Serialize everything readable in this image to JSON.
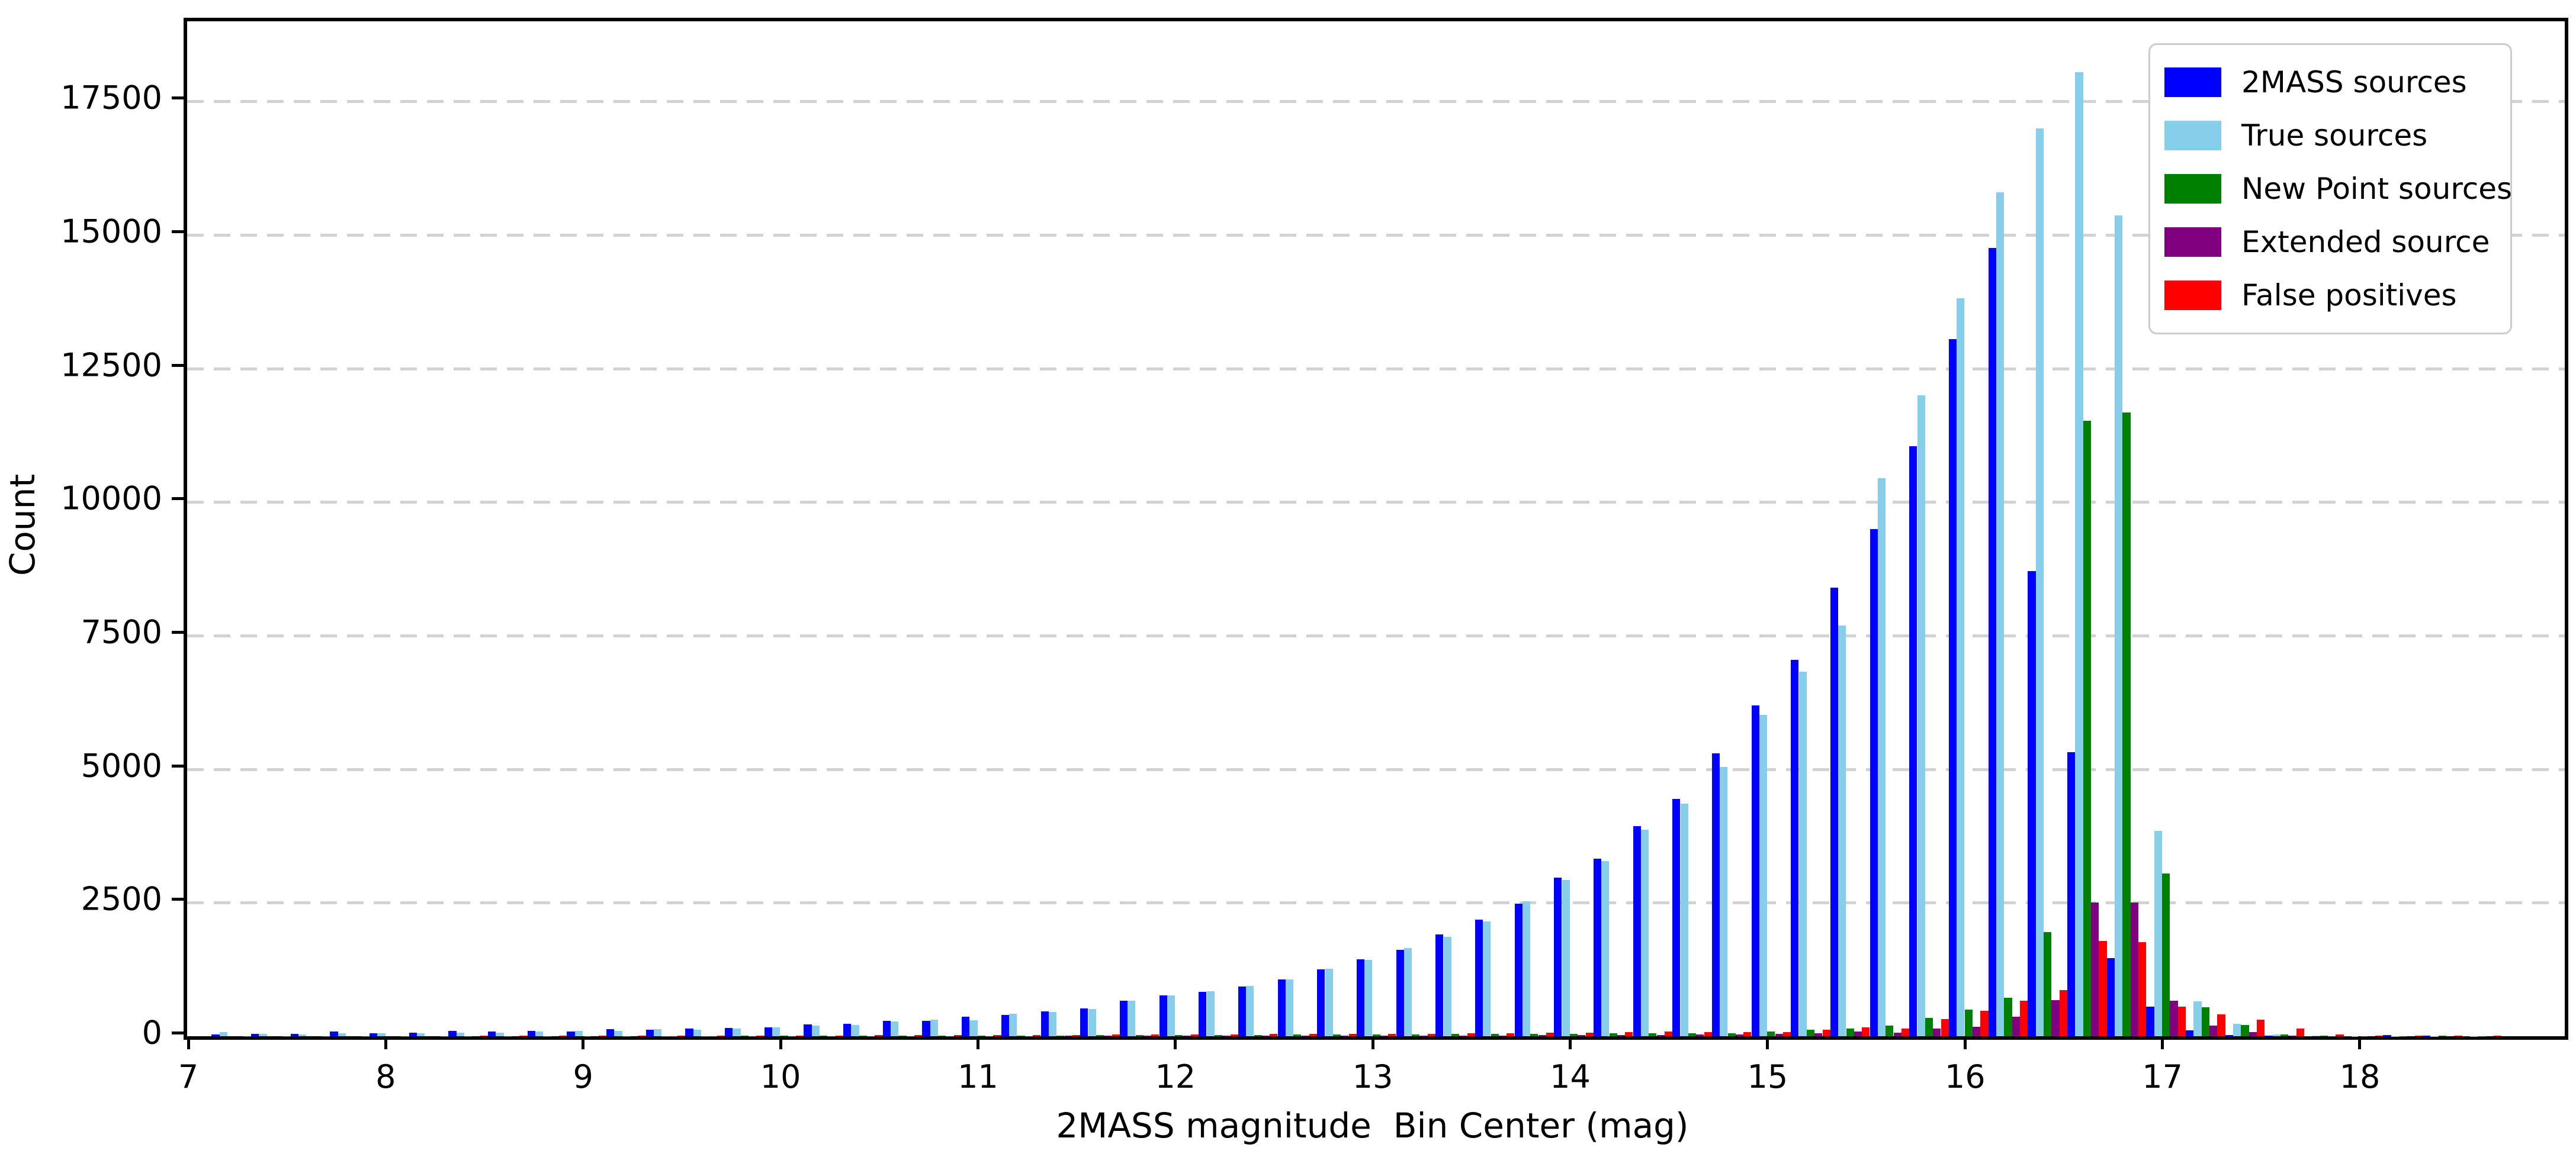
{
  "chart_data": {
    "type": "bar",
    "title": "",
    "xlabel": "2MASS magnitude  Bin Center (mag)",
    "ylabel": "Count",
    "xlim": [
      6.976,
      19.02
    ],
    "ylim": [
      0,
      19000
    ],
    "xticks": [
      7,
      8,
      9,
      10,
      11,
      12,
      13,
      14,
      15,
      16,
      17,
      18
    ],
    "yticks": [
      0,
      2500,
      5000,
      7500,
      10000,
      12500,
      15000,
      17500
    ],
    "grid": "horizontal dashed",
    "grid_color": "#d2d2d2",
    "legend_position": "upper right",
    "bin_width": 0.2,
    "bar_width": 0.04,
    "categories": [
      7.2,
      7.4,
      7.6,
      7.8,
      8.0,
      8.2,
      8.4,
      8.6,
      8.8,
      9.0,
      9.2,
      9.4,
      9.6,
      9.8,
      10.0,
      10.2,
      10.4,
      10.6,
      10.8,
      11.0,
      11.2,
      11.4,
      11.6,
      11.8,
      12.0,
      12.2,
      12.4,
      12.6,
      12.8,
      13.0,
      13.2,
      13.4,
      13.6,
      13.8,
      14.0,
      14.2,
      14.4,
      14.6,
      14.8,
      15.0,
      15.2,
      15.4,
      15.6,
      15.8,
      16.0,
      16.2,
      16.4,
      16.6,
      16.8,
      17.0,
      17.2,
      17.4,
      17.6,
      17.8,
      18.0,
      18.2,
      18.4,
      18.6
    ],
    "series": [
      {
        "name": "2MASS sources",
        "color": "#0000ff",
        "values": [
          30,
          50,
          45,
          85,
          55,
          70,
          105,
          85,
          100,
          90,
          130,
          120,
          145,
          155,
          170,
          220,
          230,
          290,
          290,
          370,
          395,
          470,
          520,
          665,
          765,
          835,
          935,
          1060,
          1250,
          1440,
          1620,
          1905,
          2185,
          2480,
          2965,
          3325,
          3935,
          4440,
          5295,
          6195,
          7050,
          8400,
          9500,
          11050,
          13050,
          14760,
          8710,
          5320,
          1460,
          550,
          115,
          20,
          10,
          5,
          5,
          20,
          10,
          5
        ]
      },
      {
        "name": "True sources",
        "color": "#87ceeb",
        "values": [
          75,
          40,
          30,
          60,
          55,
          60,
          70,
          70,
          85,
          105,
          100,
          130,
          125,
          140,
          165,
          195,
          215,
          275,
          315,
          305,
          420,
          455,
          505,
          660,
          770,
          840,
          945,
          1065,
          1260,
          1425,
          1650,
          1860,
          2155,
          2530,
          2930,
          3285,
          3870,
          4355,
          5045,
          6020,
          6820,
          7690,
          10450,
          12000,
          13820,
          15800,
          17000,
          18050,
          15370,
          3840,
          650,
          230,
          35,
          10,
          5,
          5,
          5,
          5
        ]
      },
      {
        "name": "New Point sources",
        "color": "#008000",
        "values": [
          0,
          0,
          0,
          0,
          0,
          0,
          5,
          5,
          5,
          5,
          5,
          5,
          5,
          10,
          10,
          10,
          10,
          10,
          15,
          15,
          15,
          15,
          20,
          20,
          20,
          25,
          25,
          30,
          30,
          35,
          35,
          40,
          40,
          45,
          50,
          55,
          60,
          60,
          60,
          85,
          120,
          145,
          195,
          340,
          495,
          720,
          1950,
          11520,
          11680,
          3050,
          545,
          210,
          30,
          10,
          5,
          5,
          10,
          5
        ]
      },
      {
        "name": "Extended source",
        "color": "#800080",
        "values": [
          0,
          0,
          0,
          0,
          0,
          0,
          0,
          0,
          0,
          0,
          0,
          5,
          5,
          5,
          5,
          5,
          5,
          5,
          5,
          5,
          5,
          10,
          10,
          10,
          10,
          10,
          10,
          10,
          15,
          15,
          15,
          15,
          15,
          20,
          20,
          25,
          25,
          30,
          30,
          45,
          55,
          85,
          65,
          140,
          180,
          370,
          680,
          2500,
          2500,
          665,
          205,
          75,
          10,
          5,
          0,
          0,
          0,
          0
        ]
      },
      {
        "name": "False positives",
        "color": "#ff0000",
        "values": [
          5,
          5,
          5,
          5,
          5,
          5,
          10,
          10,
          10,
          10,
          10,
          10,
          15,
          15,
          15,
          15,
          20,
          20,
          20,
          25,
          25,
          25,
          30,
          30,
          35,
          35,
          40,
          40,
          45,
          45,
          50,
          55,
          55,
          65,
          70,
          80,
          90,
          80,
          75,
          75,
          120,
          170,
          145,
          320,
          480,
          670,
          870,
          1780,
          1760,
          555,
          415,
          310,
          150,
          35,
          10,
          10,
          15,
          10
        ]
      }
    ]
  }
}
